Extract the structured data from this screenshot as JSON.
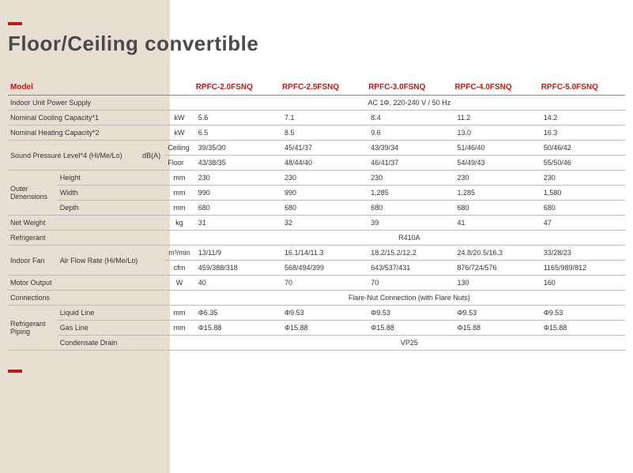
{
  "title": "Floor/Ceiling convertible",
  "colors": {
    "accent": "#b71c1c",
    "beige": "#e8dfd3",
    "border": "#bdbdbd",
    "text": "#333333",
    "heading": "#4a4a4a"
  },
  "header": {
    "model_label": "Model",
    "models": [
      "RPFC-2.0FSNQ",
      "RPFC-2.5FSNQ",
      "RPFC-3.0FSNQ",
      "RPFC-4.0FSNQ",
      "RPFC-5.0FSNQ"
    ]
  },
  "rows": {
    "power_supply": {
      "label": "Indoor Unit Power Supply",
      "value_span": "AC 1Φ, 220-240 V / 50 Hz"
    },
    "cool": {
      "label": "Nominal Cooling Capacity*1",
      "unit": "kW",
      "v": [
        "5.6",
        "7.1",
        "8.4",
        "11.2",
        "14.2"
      ]
    },
    "heat": {
      "label": "Nominal Heating Capacity*2",
      "unit": "kW",
      "v": [
        "6.5",
        "8.5",
        "9.6",
        "13.0",
        "16.3"
      ]
    },
    "spl": {
      "label": "Sound Pressure Level*4 (Hi/Me/Lo)",
      "unit": "dB(A)",
      "ceiling": {
        "sub": "Ceiling",
        "v": [
          "39/35/30",
          "45/41/37",
          "43/39/34",
          "51/46/40",
          "50/46/42"
        ]
      },
      "floor": {
        "sub": "Floor",
        "v": [
          "43/38/35",
          "48/44/40",
          "46/41/37",
          "54/49/43",
          "55/50/46"
        ]
      }
    },
    "outer": {
      "label": "Outer Dimensions",
      "height": {
        "sub": "Height",
        "unit": "mm",
        "v": [
          "230",
          "230",
          "230",
          "230",
          "230"
        ]
      },
      "width": {
        "sub": "Width",
        "unit": "mm",
        "v": [
          "990",
          "990",
          "1,285",
          "1,285",
          "1,580"
        ]
      },
      "depth": {
        "sub": "Depth",
        "unit": "mm",
        "v": [
          "680",
          "680",
          "680",
          "680",
          "680"
        ]
      }
    },
    "weight": {
      "label": "Net Weight",
      "unit": "kg",
      "v": [
        "31",
        "32",
        "39",
        "41",
        "47"
      ]
    },
    "refrigerant": {
      "label": "Refrigerant",
      "value_span": "R410A"
    },
    "fan": {
      "label": "Indoor Fan",
      "afr_label": "Air Flow Rate (Hi/Me/Lo)",
      "m3min": {
        "unit": "m³/min",
        "v": [
          "13/11/9",
          "16.1/14/11.3",
          "18.2/15.2/12.2",
          "24.8/20.5/16.3",
          "33/28/23"
        ]
      },
      "cfm": {
        "unit": "cfm",
        "v": [
          "459/388/318",
          "568/494/399",
          "643/537/431",
          "876/724/576",
          "1165/989/812"
        ]
      }
    },
    "motor": {
      "label": "Motor Output",
      "unit": "W",
      "v": [
        "40",
        "70",
        "70",
        "130",
        "160"
      ]
    },
    "connections": {
      "label": "Connections",
      "value_span": "Flare-Nut Connection (with Flare Nuts)"
    },
    "piping": {
      "label": "Refrigerant Piping",
      "liquid": {
        "sub": "Liquid Line",
        "unit": "mm",
        "v": [
          "Φ6.35",
          "Φ9.53",
          "Φ9.53",
          "Φ9.53",
          "Φ9.53"
        ]
      },
      "gas": {
        "sub": "Gas Line",
        "unit": "mm",
        "v": [
          "Φ15.88",
          "Φ15.88",
          "Φ15.88",
          "Φ15.88",
          "Φ15.88"
        ]
      },
      "drain": {
        "sub": "Condensate Drain",
        "value_span": "VP25"
      }
    }
  }
}
